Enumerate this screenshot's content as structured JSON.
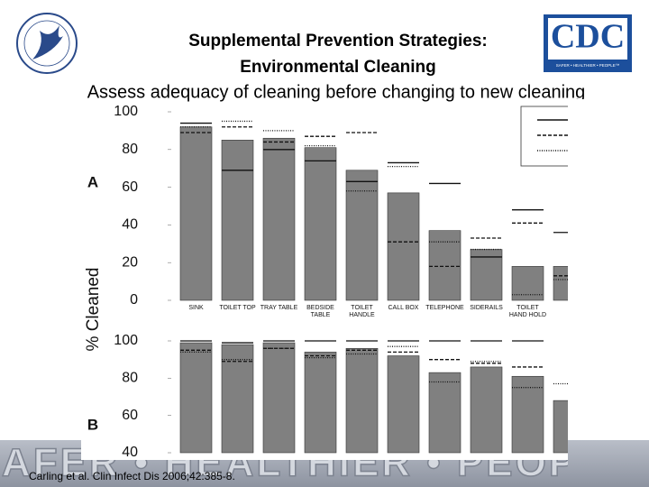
{
  "header": {
    "title_line1": "Supplemental Prevention Strategies:",
    "title_line2": "Environmental Cleaning",
    "subtitle": "Assess adequacy of cleaning before changing to new cleaning",
    "logo_text": "CDC"
  },
  "y_axis_label": "% Cleaned",
  "chart_data": [
    {
      "type": "bar",
      "panel_label": "A",
      "categories": [
        "SINK",
        "TOILET TOP",
        "TRAY TABLE",
        "BEDSIDE TABLE",
        "TOILET HANDLE",
        "CALL BOX",
        "TELEPHONE",
        "SIDERAILS",
        "TOILET HAND HOLD",
        null
      ],
      "values": [
        92,
        85,
        86,
        81,
        69,
        57,
        37,
        27,
        18,
        18
      ],
      "color": "#808080",
      "markers": [
        {
          "style": "solid",
          "values": [
            94,
            69,
            80,
            74,
            63,
            73,
            62,
            23,
            48,
            36
          ]
        },
        {
          "style": "dashed",
          "values": [
            89,
            92,
            84,
            87,
            89,
            31,
            18,
            33,
            41,
            13
          ]
        },
        {
          "style": "dotted",
          "values": [
            92,
            95,
            90,
            82,
            58,
            71,
            31,
            27,
            3,
            11
          ]
        }
      ],
      "ylim": [
        0,
        100
      ],
      "yticks": [
        0,
        20,
        40,
        60,
        80,
        100
      ]
    },
    {
      "type": "bar",
      "panel_label": "B",
      "values": [
        99,
        98,
        99,
        94,
        96,
        92,
        83,
        86,
        81,
        68
      ],
      "color": "#808080",
      "markers": [
        {
          "style": "solid",
          "values": [
            100,
            99,
            100,
            100,
            100,
            100,
            100,
            100,
            100,
            null
          ]
        },
        {
          "style": "dashed",
          "values": [
            95,
            89,
            96,
            92,
            95,
            94,
            90,
            88,
            86,
            null
          ]
        },
        {
          "style": "dotted",
          "values": [
            94,
            90,
            96,
            91,
            93,
            97,
            78,
            89,
            75,
            77
          ]
        }
      ],
      "ylim": [
        40,
        100
      ],
      "yticks": [
        40,
        60,
        80,
        100
      ]
    }
  ],
  "footer": {
    "banner": "SAFER • HEALTHIER • PEOPLE™",
    "citation": "Carling et al. Clin Infect Dis 2006;42:385-8."
  }
}
